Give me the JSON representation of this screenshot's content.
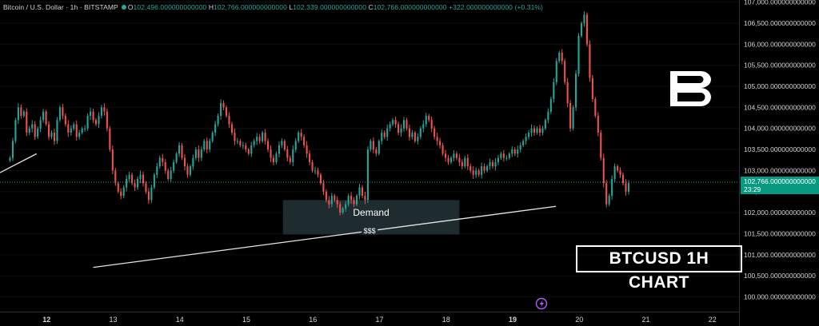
{
  "header": {
    "symbol_line": "Bitcoin / U.S. Dollar · 1h · BITSTAMP",
    "open_label": "O",
    "open_value": "102,496.000000000000",
    "high_label": "H",
    "high_value": "102,766.000000000000",
    "low_label": "L",
    "low_value": "102,339.000000000000",
    "close_label": "C",
    "close_value": "102,766.000000000000",
    "change": "+322.000000000000 (+0.31%)"
  },
  "headline": "BTCUSD 1H CHART",
  "last_price": {
    "value": "102,766.000000000000",
    "countdown": "23:29"
  },
  "colors": {
    "up": "#26a69a",
    "down": "#ef5350",
    "price_tag": "#089981",
    "zone": "#1e2b2f"
  },
  "icons": [
    "brand-b-logo-icon",
    "lightning-badge-icon"
  ],
  "chart_data": {
    "type": "candlestick",
    "title": "",
    "x_ticks": [
      "12",
      "13",
      "14",
      "15",
      "16",
      "17",
      "18",
      "19",
      "20",
      "21",
      "22"
    ],
    "y_ticks": [
      "107,000.000000000000",
      "106,500.000000000000",
      "106,000.000000000000",
      "105,500.000000000000",
      "105,000.000000000000",
      "104,500.000000000000",
      "104,000.000000000000",
      "103,500.000000000000",
      "103,000.000000000000",
      "102,500.000000000000",
      "102,000.000000000000",
      "101,500.000000000000",
      "101,000.000000000000",
      "100,500.000000000000",
      "100,000.000000000000"
    ],
    "y_tick_values": [
      107000,
      106500,
      106000,
      105500,
      105000,
      104500,
      104000,
      103500,
      103000,
      102500,
      102000,
      101500,
      101000,
      100500,
      100000
    ],
    "y_range": [
      99650,
      107050
    ],
    "x_range": [
      11.3,
      22.4
    ],
    "candles_start_day": 11.45,
    "candles_hours": 1,
    "closes": [
      103300,
      103700,
      104200,
      104500,
      104300,
      104400,
      103900,
      104000,
      104100,
      103800,
      104000,
      104200,
      104400,
      104100,
      103800,
      103900,
      103700,
      104200,
      104500,
      104300,
      104100,
      103900,
      104000,
      104100,
      103800,
      103900,
      104000,
      104000,
      104300,
      104400,
      104200,
      104100,
      104300,
      104500,
      104400,
      104000,
      103500,
      103000,
      102700,
      102500,
      102400,
      102600,
      102800,
      102900,
      102700,
      102600,
      102800,
      102900,
      102700,
      102500,
      102300,
      102600,
      102900,
      103100,
      103300,
      103200,
      103000,
      102800,
      103000,
      103200,
      103400,
      103600,
      103300,
      103100,
      102900,
      103100,
      103300,
      103500,
      103300,
      103500,
      103700,
      103500,
      103700,
      103900,
      104100,
      104300,
      104600,
      104500,
      104300,
      104100,
      103900,
      103700,
      103700,
      103600,
      103600,
      103500,
      103400,
      103600,
      103700,
      103800,
      103700,
      103900,
      103700,
      103500,
      103300,
      103200,
      103400,
      103600,
      103700,
      103500,
      103300,
      103200,
      103500,
      103700,
      103900,
      103800,
      103600,
      103400,
      103200,
      103000,
      103000,
      102900,
      102700,
      102500,
      102300,
      102200,
      102400,
      102300,
      102200,
      102000,
      102100,
      102200,
      102400,
      102300,
      102200,
      102400,
      102600,
      102400,
      102300,
      103500,
      103700,
      103500,
      103400,
      103700,
      103900,
      103800,
      104000,
      104100,
      104200,
      104100,
      103900,
      104000,
      104200,
      104000,
      103800,
      103900,
      103700,
      103800,
      104000,
      104100,
      104300,
      104200,
      104000,
      103800,
      103700,
      103600,
      103400,
      103300,
      103200,
      103300,
      103400,
      103300,
      103200,
      103100,
      103300,
      103100,
      103000,
      102900,
      103000,
      102900,
      103100,
      103000,
      103100,
      103200,
      103100,
      103200,
      103300,
      103400,
      103300,
      103300,
      103400,
      103500,
      103400,
      103500,
      103600,
      103700,
      103800,
      103900,
      104000,
      103900,
      104000,
      103900,
      104000,
      104200,
      104400,
      104700,
      105100,
      105600,
      105800,
      105600,
      105100,
      104600,
      104000,
      104500,
      105300,
      106200,
      106500,
      106700,
      106000,
      105200,
      104700,
      104300,
      103900,
      103300,
      102700,
      102200,
      102400,
      102800,
      103100,
      103000,
      102900,
      102700,
      102500,
      102700
    ],
    "zone": {
      "label": "Demand",
      "x_start": 15.55,
      "x_end": 18.2,
      "y_top": 102300,
      "y_bottom": 101480
    },
    "trendlines": [
      {
        "label": "$$$",
        "points": [
          [
            12.7,
            100700
          ],
          [
            19.65,
            102150
          ]
        ]
      },
      {
        "label": "",
        "points": [
          [
            11.3,
            102950
          ],
          [
            11.85,
            103400
          ]
        ]
      }
    ]
  }
}
